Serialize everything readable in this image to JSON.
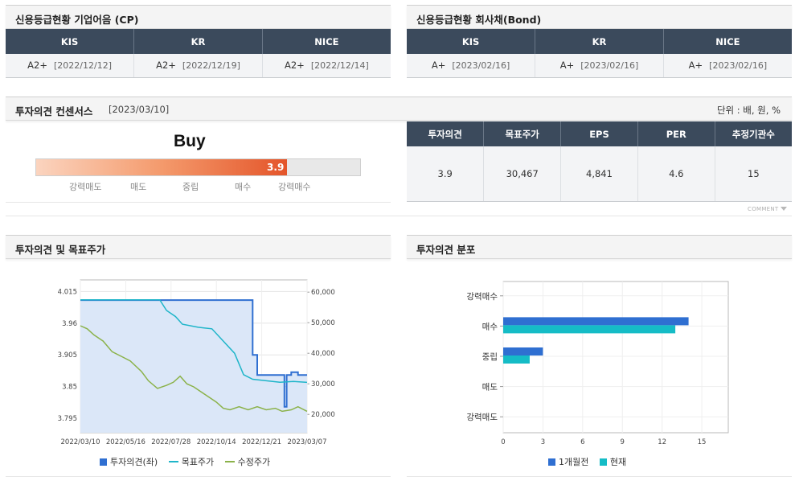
{
  "cp_panel": {
    "title": "신용등급현황 기업어음 (CP)",
    "columns": [
      "KIS",
      "KR",
      "NICE"
    ],
    "ratings": [
      {
        "grade": "A2+",
        "date": "[2022/12/12]"
      },
      {
        "grade": "A2+",
        "date": "[2022/12/19]"
      },
      {
        "grade": "A2+",
        "date": "[2022/12/14]"
      }
    ]
  },
  "bond_panel": {
    "title": "신용등급현황 회사채(Bond)",
    "columns": [
      "KIS",
      "KR",
      "NICE"
    ],
    "ratings": [
      {
        "grade": "A+",
        "date": "[2023/02/16]"
      },
      {
        "grade": "A+",
        "date": "[2023/02/16]"
      },
      {
        "grade": "A+",
        "date": "[2023/02/16]"
      }
    ]
  },
  "consensus": {
    "title": "투자의견 컨센서스",
    "date": "[2023/03/10]",
    "unit": "단위 : 배, 원, %",
    "opinion": "Buy",
    "score": "3.9",
    "score_fraction": 0.775,
    "scale_labels": [
      "강력매도",
      "매도",
      "중립",
      "매수",
      "강력매수"
    ],
    "columns": [
      "투자의견",
      "목표주가",
      "EPS",
      "PER",
      "추정기관수"
    ],
    "values": [
      "3.9",
      "30,467",
      "4,841",
      "4.6",
      "15"
    ],
    "comment_label": "COMMENT"
  },
  "price_chart": {
    "title": "투자의견 및 목표주가",
    "chart_data": {
      "type": "line",
      "x_ticks": [
        "2022/03/10",
        "2022/05/16",
        "2022/07/28",
        "2022/10/14",
        "2022/12/21",
        "2023/03/07"
      ],
      "y_left_ticks": [
        "4.015",
        "3.96",
        "3.905",
        "3.85",
        "3.795"
      ],
      "y_left_range": [
        3.77,
        4.035
      ],
      "y_right_ticks": [
        "60,000",
        "50,000",
        "40,000",
        "30,000",
        "20,000"
      ],
      "y_right_range": [
        14000,
        64000
      ],
      "legend": [
        "투자의견(좌)",
        "목표주가",
        "수정주가"
      ],
      "series": [
        {
          "name": "투자의견(좌)",
          "color": "#2f6fd1",
          "axis": "left",
          "points": [
            [
              0,
              4.0
            ],
            [
              0.76,
              4.0
            ],
            [
              0.76,
              3.905
            ],
            [
              0.78,
              3.905
            ],
            [
              0.78,
              3.87
            ],
            [
              0.9,
              3.87
            ],
            [
              0.9,
              3.815
            ],
            [
              0.91,
              3.815
            ],
            [
              0.91,
              3.87
            ],
            [
              0.93,
              3.87
            ],
            [
              0.93,
              3.875
            ],
            [
              0.96,
              3.875
            ],
            [
              0.96,
              3.87
            ],
            [
              1.0,
              3.87
            ]
          ]
        },
        {
          "name": "목표주가",
          "color": "#1fb5c9",
          "axis": "right",
          "points": [
            [
              0,
              57500
            ],
            [
              0.35,
              57500
            ],
            [
              0.38,
              54000
            ],
            [
              0.42,
              52000
            ],
            [
              0.45,
              49500
            ],
            [
              0.52,
              48500
            ],
            [
              0.58,
              48000
            ],
            [
              0.63,
              44000
            ],
            [
              0.68,
              40000
            ],
            [
              0.72,
              33000
            ],
            [
              0.76,
              31500
            ],
            [
              0.82,
              31000
            ],
            [
              0.88,
              30500
            ],
            [
              0.94,
              30800
            ],
            [
              1.0,
              30467
            ]
          ]
        },
        {
          "name": "수정주가",
          "color": "#8bb24a",
          "axis": "right",
          "points": [
            [
              0,
              49000
            ],
            [
              0.03,
              48000
            ],
            [
              0.06,
              46000
            ],
            [
              0.1,
              44000
            ],
            [
              0.14,
              40500
            ],
            [
              0.18,
              39000
            ],
            [
              0.22,
              37500
            ],
            [
              0.27,
              34000
            ],
            [
              0.3,
              31000
            ],
            [
              0.34,
              28500
            ],
            [
              0.38,
              29500
            ],
            [
              0.41,
              30500
            ],
            [
              0.44,
              32500
            ],
            [
              0.47,
              30000
            ],
            [
              0.5,
              29000
            ],
            [
              0.53,
              27500
            ],
            [
              0.56,
              26000
            ],
            [
              0.6,
              24000
            ],
            [
              0.63,
              22000
            ],
            [
              0.66,
              21500
            ],
            [
              0.7,
              22500
            ],
            [
              0.74,
              21500
            ],
            [
              0.78,
              22500
            ],
            [
              0.82,
              21500
            ],
            [
              0.86,
              22000
            ],
            [
              0.89,
              21000
            ],
            [
              0.93,
              21500
            ],
            [
              0.96,
              22500
            ],
            [
              1.0,
              21000
            ]
          ]
        }
      ]
    }
  },
  "distribution_chart": {
    "title": "투자의견 분포",
    "chart_data": {
      "type": "bar",
      "orientation": "horizontal",
      "categories": [
        "강력매수",
        "매수",
        "중립",
        "매도",
        "강력매도"
      ],
      "x_ticks": [
        "0",
        "3",
        "6",
        "9",
        "12",
        "15"
      ],
      "xlim": [
        0,
        17
      ],
      "series": [
        {
          "name": "1개월전",
          "color": "#2f6fd1",
          "values": [
            0,
            14,
            3,
            0,
            0
          ]
        },
        {
          "name": "현재",
          "color": "#15bcc6",
          "values": [
            0,
            13,
            2,
            0,
            0
          ]
        }
      ]
    }
  }
}
